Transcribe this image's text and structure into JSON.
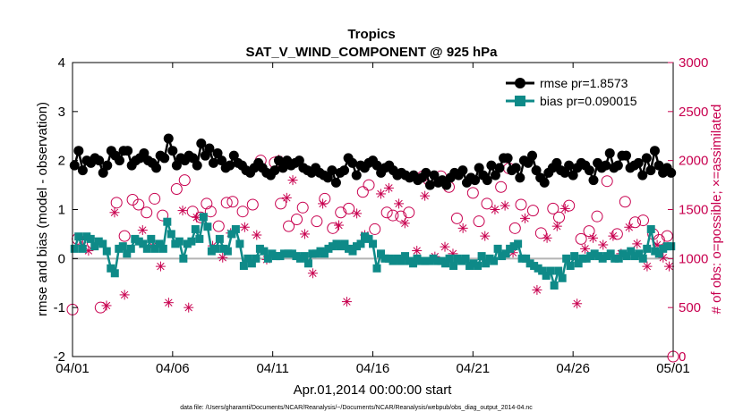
{
  "chart_data": {
    "type": "line",
    "title": "Tropics",
    "subtitle": "SAT_V_WIND_COMPONENT @ 925 hPa",
    "xlabel": "Apr.01,2014 00:00:00 start",
    "ylabel_left": "rmse and bias (model - observation)",
    "ylabel_right": "# of obs: o=possible; ×=assimilated",
    "xlim": [
      0,
      30
    ],
    "ylim_left": [
      -2,
      4
    ],
    "ylim_right": [
      0,
      3000
    ],
    "x_ticks": [
      0,
      5,
      10,
      15,
      20,
      25,
      30
    ],
    "x_tick_labels": [
      "04/01",
      "04/06",
      "04/11",
      "04/16",
      "04/21",
      "04/26",
      "05/01"
    ],
    "y_left_ticks": [
      "-2",
      "-1",
      "0",
      "1",
      "2",
      "3",
      "4"
    ],
    "y_right_ticks": [
      "0",
      "500",
      "1000",
      "1500",
      "2000",
      "2500",
      "3000"
    ],
    "footer": "data file: /Users/gharamti/Documents/NCAR/Reanalysis/~/Documents/NCAR/Reanalysis/webpub/obs_diag_output_2014-04.nc",
    "colors": {
      "rmse": "#000000",
      "bias": "#0e8a88",
      "obs": "#c8004f",
      "zero_line": "#b4b4b4"
    },
    "series": [
      {
        "name": "rmse pr=1.8573",
        "axis": "left",
        "values": [
          1.9,
          2.2,
          1.8,
          2.0,
          1.95,
          2.05,
          2.0,
          1.75,
          1.9,
          2.2,
          2.1,
          2.0,
          2.2,
          2.2,
          1.9,
          2.0,
          2.05,
          2.15,
          2.0,
          1.95,
          1.85,
          2.1,
          2.05,
          2.45,
          2.2,
          1.9,
          2.05,
          2.0,
          2.1,
          2.05,
          1.9,
          2.35,
          2.1,
          2.25,
          1.95,
          2.15,
          2.0,
          1.85,
          1.9,
          2.1,
          1.95,
          1.9,
          1.8,
          1.75,
          1.85,
          1.95,
          1.85,
          1.75,
          1.7,
          1.8,
          2.0,
          1.85,
          2.0,
          1.9,
          1.95,
          2.0,
          1.85,
          1.8,
          1.75,
          1.85,
          1.75,
          1.7,
          1.65,
          1.8,
          1.55,
          1.75,
          1.8,
          2.05,
          1.95,
          1.7,
          1.9,
          1.85,
          1.95,
          2.0,
          1.9,
          1.75,
          1.85,
          1.9,
          1.8,
          1.7,
          1.75,
          1.7,
          1.65,
          1.7,
          1.6,
          1.65,
          1.75,
          1.5,
          1.7,
          1.55,
          1.6,
          1.5,
          1.65,
          1.75,
          1.7,
          1.8,
          1.55,
          1.65,
          1.6,
          1.85,
          1.7,
          1.6,
          1.9,
          1.7,
          1.85,
          2.05,
          2.05,
          1.8,
          1.85,
          1.65,
          2.0,
          1.95,
          2.1,
          1.8,
          1.65,
          1.55,
          1.75,
          1.85,
          1.95,
          1.8,
          1.75,
          1.9,
          1.7,
          1.85,
          1.95,
          1.9,
          1.8,
          1.6,
          1.95,
          1.85,
          1.9,
          2.15,
          1.85,
          1.9,
          2.1,
          2.1,
          1.85,
          1.9,
          1.95,
          1.7,
          2.05,
          1.8,
          2.2,
          1.9,
          1.75,
          1.85,
          1.75
        ]
      },
      {
        "name": "bias pr=0.090015",
        "axis": "left",
        "values": [
          0.2,
          0.45,
          0.2,
          0.45,
          0.4,
          0.25,
          0.35,
          0.3,
          0.15,
          -0.2,
          -0.3,
          0.2,
          0.25,
          0.1,
          0.2,
          0.4,
          0.35,
          0.3,
          0.2,
          0.4,
          0.2,
          0.3,
          0.2,
          0.75,
          0.5,
          0.3,
          0.35,
          0.0,
          0.3,
          0.35,
          0.6,
          0.4,
          0.85,
          0.65,
          0.15,
          0.2,
          0.4,
          0.2,
          0.15,
          0.5,
          0.6,
          0.3,
          -0.15,
          0.0,
          -0.1,
          0.0,
          0.2,
          0.15,
          0.0,
          0.1,
          0.05,
          0.05,
          0.1,
          0.1,
          0.1,
          0.05,
          0.0,
          0.05,
          -0.1,
          0.1,
          0.1,
          0.15,
          0.1,
          0.2,
          0.25,
          0.3,
          0.25,
          0.3,
          0.2,
          0.15,
          0.25,
          0.3,
          0.45,
          0.4,
          0.3,
          -0.2,
          0.1,
          0.0,
          0.0,
          -0.05,
          0.0,
          -0.05,
          0.05,
          -0.05,
          -0.1,
          0.0,
          -0.05,
          -0.05,
          -0.05,
          0.0,
          -0.05,
          -0.05,
          -0.1,
          0.0,
          -0.15,
          0.0,
          -0.05,
          0.0,
          -0.15,
          -0.1,
          -0.15,
          0.05,
          -0.1,
          0.0,
          -0.05,
          0.2,
          0.05,
          0.1,
          0.2,
          0.25,
          0.3,
          0.0,
          0.0,
          -0.1,
          -0.15,
          -0.2,
          -0.25,
          -0.35,
          -0.25,
          -0.55,
          -0.25,
          -0.4,
          0.0,
          -0.15,
          0.05,
          -0.1,
          0.0,
          0.0,
          0.05,
          0.1,
          0.05,
          0.0,
          0.05,
          0.1,
          0.0,
          0.0,
          0.1,
          0.05,
          0.15,
          0.05,
          0.1,
          0.0,
          0.2,
          0.6,
          0.15,
          0.1,
          0.2,
          0.25,
          0.25
        ]
      },
      {
        "name": "possible",
        "axis": "right",
        "x": [
          0.0,
          0.25,
          1.0,
          1.4,
          2.2,
          2.6,
          3.0,
          3.3,
          3.7,
          4.1,
          4.5,
          5.2,
          5.6,
          6.0,
          6.4,
          6.7,
          6.9,
          7.3,
          7.7,
          8.0,
          8.5,
          9.0,
          9.4,
          10.1,
          10.4,
          10.8,
          11.2,
          11.5,
          12.2,
          12.6,
          13.0,
          13.4,
          13.8,
          14.5,
          14.8,
          15.1,
          15.7,
          16.0,
          16.4,
          16.8,
          17.5,
          17.8,
          18.4,
          18.8,
          19.2,
          20.0,
          20.3,
          20.7,
          21.4,
          21.8,
          22.1,
          22.4,
          23.0,
          23.4,
          24.0,
          24.3,
          24.8,
          25.4,
          25.8,
          26.2,
          26.7,
          27.2,
          27.6,
          28.1,
          28.5,
          29.0,
          29.3,
          29.7,
          30.0
        ],
        "values": [
          480,
          1200,
          1160,
          500,
          1570,
          1230,
          1600,
          1550,
          1470,
          1610,
          1440,
          1710,
          1800,
          1480,
          1420,
          1560,
          1480,
          1330,
          1570,
          1580,
          1480,
          1550,
          2000,
          1980,
          1560,
          1330,
          1400,
          1520,
          1380,
          1610,
          1310,
          1470,
          1510,
          1680,
          1750,
          1300,
          1470,
          1440,
          1430,
          1470,
          1840,
          1800,
          1840,
          1730,
          1410,
          1670,
          1380,
          1560,
          1730,
          1920,
          1310,
          1550,
          1490,
          1260,
          1510,
          1420,
          1540,
          1200,
          1280,
          1430,
          1790,
          1250,
          1580,
          1370,
          1390,
          1250,
          1190,
          1230,
          0
        ]
      },
      {
        "name": "assimilated",
        "axis": "right",
        "x": [
          0.5,
          0.8,
          1.7,
          2.1,
          2.6,
          3.5,
          4.0,
          4.4,
          4.8,
          5.5,
          5.8,
          6.2,
          7.0,
          7.5,
          7.9,
          8.6,
          9.2,
          9.7,
          10.3,
          10.7,
          11.0,
          11.6,
          12.0,
          12.5,
          13.3,
          13.7,
          14.2,
          14.6,
          15.4,
          15.8,
          16.3,
          16.6,
          17.2,
          17.6,
          18.1,
          18.6,
          19.0,
          19.5,
          20.6,
          21.1,
          21.6,
          22.0,
          22.6,
          23.2,
          23.7,
          24.2,
          24.6,
          25.2,
          25.6,
          26.0,
          26.5,
          27.0,
          27.4,
          27.8,
          28.2,
          28.7,
          29.2,
          29.5,
          29.8
        ],
        "values": [
          1130,
          1080,
          520,
          1470,
          630,
          1290,
          1130,
          920,
          550,
          1490,
          500,
          1420,
          1130,
          1010,
          1260,
          1320,
          1240,
          990,
          2010,
          1620,
          1800,
          1250,
          850,
          1560,
          1340,
          560,
          1460,
          1240,
          1660,
          1720,
          1560,
          1360,
          1080,
          1640,
          1020,
          1120,
          1050,
          1310,
          1230,
          1500,
          1540,
          1060,
          1410,
          680,
          1210,
          1330,
          1510,
          540,
          1100,
          1210,
          1140,
          1230,
          1050,
          1320,
          1150,
          920,
          1140,
          1010,
          920
        ]
      }
    ]
  }
}
